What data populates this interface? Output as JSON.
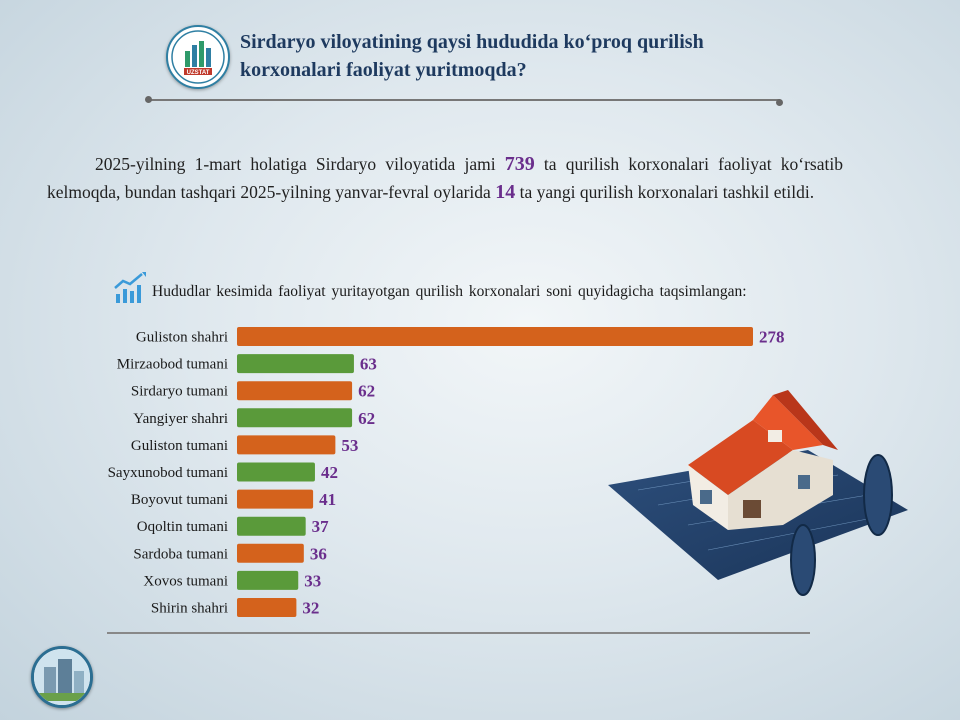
{
  "header": {
    "title_line1": "Sirdaryo viloyatining qaysi hududida ko‘proq qurilish",
    "title_line2": "korxonalari faoliyat yuritmoqda?",
    "logo_text": "UZSTAT"
  },
  "intro": {
    "part1": "2025-yilning 1-mart holatiga Sirdaryo viloyatida jami ",
    "total": "739",
    "part2": " ta qurilish korxonalari faoliyat ko‘rsatib kelmoqda, bundan tashqari 2025-yilning yanvar-fevral oylarida ",
    "new_count": "14",
    "part3": " ta yangi qurilish korxonalari tashkil etildi."
  },
  "subheading": "Hududlar kesimida faoliyat yuritayotgan qurilish korxonalari soni quyidagicha taqsimlangan:",
  "colors": {
    "orange": "#d4621c",
    "green": "#5a9a3a",
    "value_label": "#6a2e8c",
    "title": "#1e3a5f"
  },
  "chart_data": {
    "type": "bar",
    "orientation": "horizontal",
    "categories": [
      "Guliston shahri",
      "Mirzaobod tumani",
      "Sirdaryo tumani",
      "Yangiyer shahri",
      "Guliston tumani",
      "Sayxunobod tumani",
      "Boyovut tumani",
      "Oqoltin tumani",
      "Sardoba tumani",
      "Xovos tumani",
      "Shirin shahri"
    ],
    "values": [
      278,
      63,
      62,
      62,
      53,
      42,
      41,
      37,
      36,
      33,
      32
    ],
    "bar_colors": [
      "orange",
      "green",
      "orange",
      "green",
      "orange",
      "green",
      "orange",
      "green",
      "orange",
      "green",
      "orange"
    ],
    "data_labels": true,
    "grid": false,
    "legend": "none"
  }
}
